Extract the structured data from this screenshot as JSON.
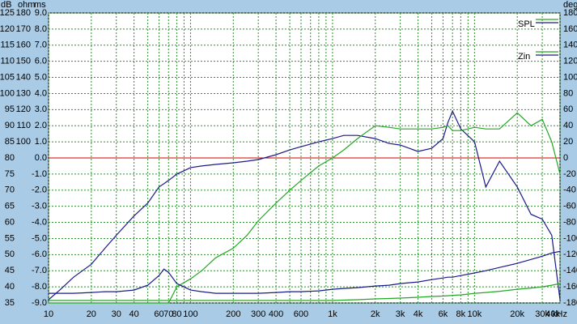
{
  "chart_data": {
    "type": "line",
    "x_label": "kHz",
    "xlim": [
      10,
      40000
    ],
    "log_x": true,
    "xticks": [
      10,
      20,
      30,
      40,
      60,
      70,
      80,
      100,
      200,
      300,
      400,
      600,
      {
        "value": 1000,
        "label": "1k"
      },
      {
        "value": 2000,
        "label": "2k"
      },
      {
        "value": 3000,
        "label": "3k"
      },
      {
        "value": 4000,
        "label": "4k"
      },
      {
        "value": 6000,
        "label": "6k"
      },
      {
        "value": 8000,
        "label": "8k"
      },
      {
        "value": 10000,
        "label": "10k"
      },
      {
        "value": 20000,
        "label": "20k"
      },
      {
        "value": 30000,
        "label": "30k"
      },
      {
        "value": 40000,
        "label": "40k"
      }
    ],
    "xgrid": [
      50,
      90,
      500,
      700,
      800,
      900,
      5000,
      7000,
      9000
    ],
    "y_label": "dB",
    "ylim": [
      35,
      125
    ],
    "yticks": [
      35,
      40,
      45,
      50,
      55,
      60,
      65,
      70,
      75,
      80,
      85,
      90,
      95,
      100,
      105,
      110,
      115,
      120,
      125
    ],
    "y2_label": "ohm",
    "y2lim": [
      0,
      180
    ],
    "y2ticks": [
      100,
      110,
      120,
      130,
      140,
      150,
      160,
      170,
      180
    ],
    "y3_label": "ms",
    "y3lim": [
      -9,
      9
    ],
    "y3ticks": [
      {
        "value": -9,
        "label": "-9.0"
      },
      {
        "value": -8,
        "label": "-8.0"
      },
      {
        "value": -7,
        "label": "-7.0"
      },
      {
        "value": -6,
        "label": "-6.0"
      },
      {
        "value": -5,
        "label": "-5.0"
      },
      {
        "value": -4,
        "label": "-4.0"
      },
      {
        "value": -3,
        "label": "-3.0"
      },
      {
        "value": -2,
        "label": "-2.0"
      },
      {
        "value": -1,
        "label": "-1.0"
      },
      {
        "value": 0,
        "label": "0.0"
      },
      {
        "value": 1,
        "label": "1.0"
      },
      {
        "value": 2,
        "label": "2.0"
      },
      {
        "value": 3,
        "label": "3.0"
      },
      {
        "value": 4,
        "label": "4.0"
      },
      {
        "value": 5,
        "label": "5.0"
      },
      {
        "value": 6,
        "label": "6.0"
      },
      {
        "value": 7,
        "label": "7.0"
      },
      {
        "value": 8,
        "label": "8.0"
      },
      {
        "value": 9,
        "label": "9.0"
      }
    ],
    "y4_label": "deg",
    "y4lim": [
      -180,
      180
    ],
    "y4ticks": [
      -180,
      -160,
      -140,
      -120,
      -100,
      -80,
      -60,
      -40,
      -20,
      0,
      20,
      40,
      60,
      80,
      100,
      120,
      140,
      160,
      180
    ],
    "grid": true,
    "reference_line": {
      "axis": "y3",
      "value": 0,
      "color": "#d00000"
    },
    "legend": [
      {
        "label": "SPL",
        "colors": [
          "#22a822",
          "#1a1a8a"
        ]
      },
      {
        "label": "Zin",
        "colors": [
          "#22a822",
          "#1a1a8a"
        ]
      }
    ],
    "x": [
      10,
      12,
      15,
      20,
      25,
      30,
      40,
      50,
      60,
      65,
      70,
      80,
      100,
      120,
      150,
      200,
      250,
      300,
      400,
      500,
      600,
      800,
      1000,
      1200,
      1500,
      2000,
      2500,
      3000,
      4000,
      5000,
      6000,
      6500,
      7000,
      8000,
      10000,
      12000,
      15000,
      20000,
      25000,
      30000,
      35000,
      40000
    ],
    "series": [
      {
        "legend": 0,
        "color": "#1a1a8a",
        "axis": "y",
        "values": [
          36,
          39,
          43,
          47,
          52,
          56,
          62,
          66,
          71,
          72,
          73,
          75,
          77,
          77.5,
          78,
          78.5,
          79,
          79.5,
          81,
          82.5,
          83.5,
          85,
          86,
          87,
          87,
          86,
          84.5,
          84,
          82,
          83,
          86,
          91,
          94.5,
          89,
          85,
          71,
          79,
          71,
          62.5,
          61,
          56,
          36
        ]
      },
      {
        "legend": 0,
        "color": "#22a822",
        "axis": "y",
        "values": [
          35,
          35,
          35,
          35,
          35,
          35,
          35,
          35,
          35,
          35,
          35,
          40,
          42.5,
          45,
          49,
          52,
          56,
          60.5,
          66,
          70,
          73,
          77.5,
          80,
          82.5,
          86,
          90,
          89.5,
          89,
          89,
          89,
          89.5,
          90,
          88.5,
          88.5,
          89.5,
          89,
          89,
          94,
          90,
          92,
          85,
          75
        ]
      },
      {
        "legend": 1,
        "color": "#1a1a8a",
        "axis": "y2",
        "values": [
          6,
          6,
          6,
          6.5,
          7,
          7,
          8,
          11,
          17,
          21,
          19,
          12,
          8,
          7,
          6,
          6,
          6,
          6,
          6.5,
          7,
          7,
          7.5,
          8.5,
          9,
          9.5,
          10.5,
          11,
          12,
          13,
          14.5,
          15.5,
          16,
          16,
          17,
          18.6,
          20,
          22,
          24.6,
          27,
          29,
          31,
          32
        ]
      },
      {
        "legend": 1,
        "color": "#22a822",
        "axis": "y4",
        "values": [
          -177,
          -177,
          -177,
          -177,
          -177,
          -177,
          -177,
          -177,
          -177,
          -177,
          -177,
          -177,
          -177,
          -177,
          -177,
          -177,
          -177,
          -177,
          -177,
          -177,
          -177,
          -177,
          -177,
          -176.5,
          -176,
          -175,
          -174.5,
          -174,
          -173,
          -172,
          -171.5,
          -171,
          -170.5,
          -170,
          -168,
          -167,
          -165.5,
          -163,
          -161.5,
          -160,
          -158,
          -156
        ]
      }
    ]
  }
}
